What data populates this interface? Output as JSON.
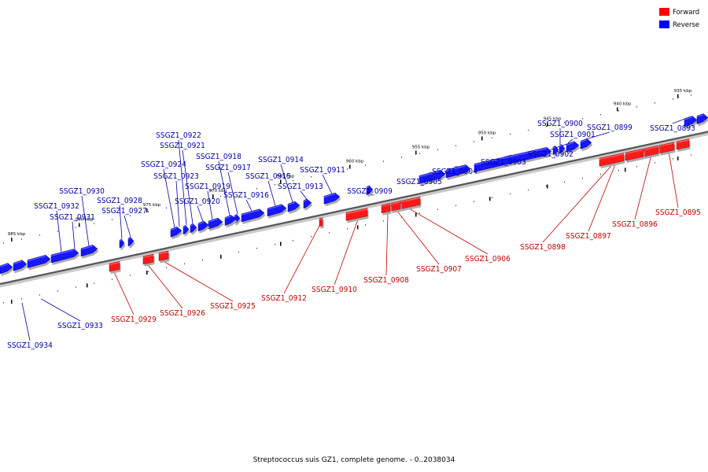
{
  "legend": {
    "forward": {
      "label": "Forward",
      "color": "#ff0000"
    },
    "reverse": {
      "label": "Reverse",
      "color": "#0000ff"
    }
  },
  "caption": "Streptococcus suis GZ1, complete genome. - 0..2038034",
  "tick_labels": [
    "935 kbp",
    "940 kbp",
    "945 kbp",
    "950 kbp",
    "955 kbp",
    "960 kbp",
    "965 kbp",
    "970 kbp",
    "975 kbp",
    "980 kbp",
    "985 kbp"
  ],
  "reverse_genes": [
    "SSGZ1_0893",
    "SSGZ1_0899",
    "SSGZ1_0900",
    "SSGZ1_0901",
    "SSGZ1_0902",
    "SSGZ1_0903",
    "SSGZ1_0904",
    "SSGZ1_0905",
    "SSGZ1_0909",
    "SSGZ1_0911",
    "SSGZ1_0913",
    "SSGZ1_0914",
    "SSGZ1_0915",
    "SSGZ1_0916",
    "SSGZ1_0917",
    "SSGZ1_0918",
    "SSGZ1_0919",
    "SSGZ1_0920",
    "SSGZ1_0921",
    "SSGZ1_0922",
    "SSGZ1_0923",
    "SSGZ1_0924",
    "SSGZ1_0927",
    "SSGZ1_0928",
    "SSGZ1_0930",
    "SSGZ1_0931",
    "SSGZ1_0932",
    "SSGZ1_0933",
    "SSGZ1_0934"
  ],
  "forward_genes": [
    "SSGZ1_0895",
    "SSGZ1_0896",
    "SSGZ1_0897",
    "SSGZ1_0898",
    "SSGZ1_0906",
    "SSGZ1_0907",
    "SSGZ1_0908",
    "SSGZ1_0910",
    "SSGZ1_0912",
    "SSGZ1_0925",
    "SSGZ1_0926",
    "SSGZ1_0929"
  ]
}
